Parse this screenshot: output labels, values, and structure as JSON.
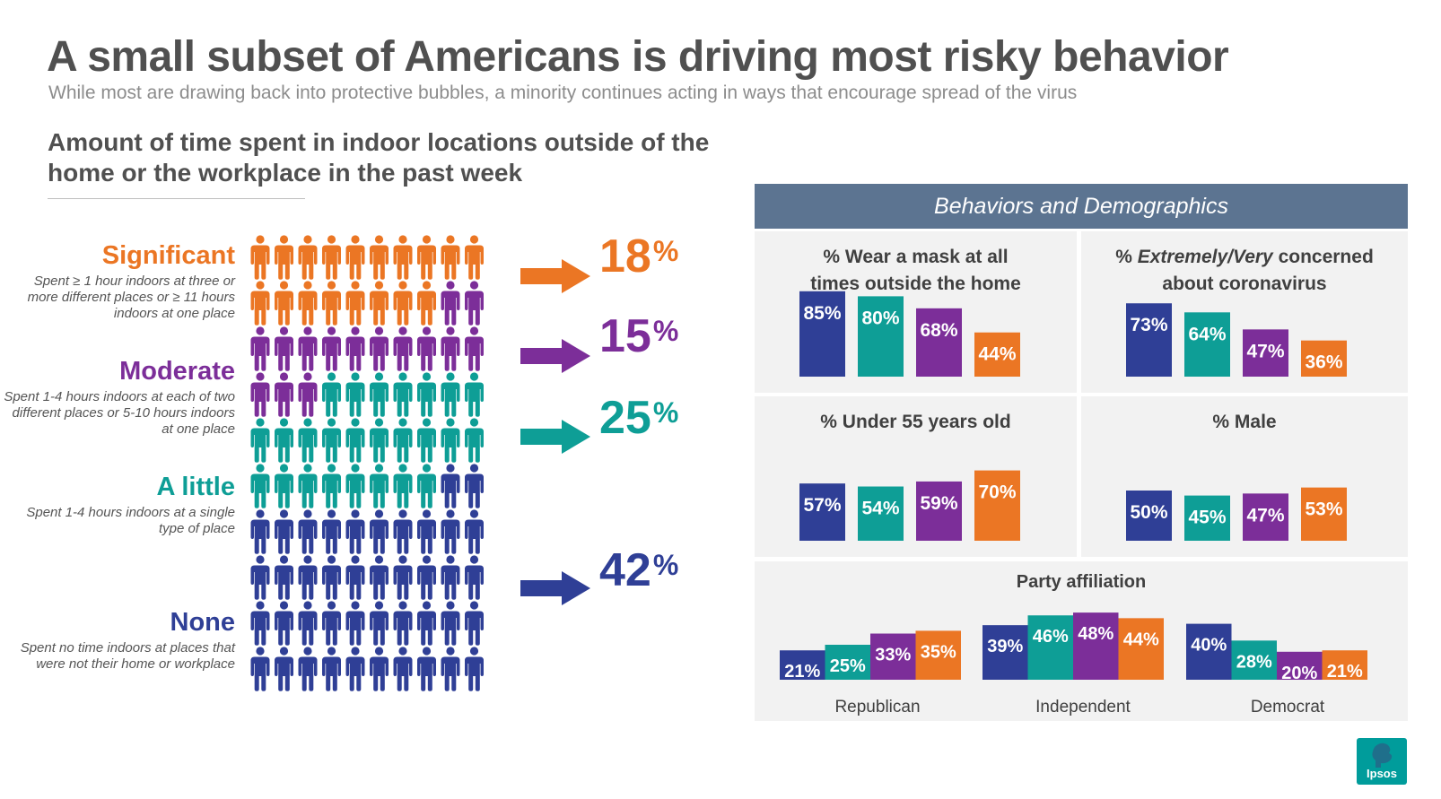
{
  "title": "A small subset of Americans is driving most risky behavior",
  "subtitle": "While most are drawing back into protective bubbles, a minority continues acting in ways that encourage spread of the virus",
  "colors": {
    "navy": "#2f3f96",
    "teal": "#0e9e96",
    "purple": "#7c2e99",
    "orange": "#eb7624",
    "header": "#5c7491",
    "panel": "#f2f2f2"
  },
  "chart_data": [
    {
      "type": "pictogram",
      "title": "Amount of time spent in indoor locations outside of the home or the workplace in the past week",
      "grid": {
        "rows": 10,
        "columns": 10
      },
      "series": [
        {
          "name": "Significant",
          "description": "Spent ≥ 1 hour indoors at three or more different places or ≥ 11 hours indoors at one place",
          "value": 18,
          "label": "18",
          "color": "#eb7624"
        },
        {
          "name": "Moderate",
          "description": "Spent 1-4 hours indoors at each of two different places or 5-10 hours indoors at one place",
          "value": 15,
          "label": "15",
          "color": "#7c2e99"
        },
        {
          "name": "A little",
          "description": "Spent 1-4 hours indoors at a single type of place",
          "value": 25,
          "label": "25",
          "color": "#0e9e96"
        },
        {
          "name": "None",
          "description": "Spent no time indoors at places that were not their home or workplace",
          "value": 42,
          "label": "42",
          "color": "#2f3f96"
        }
      ],
      "unit": "%"
    },
    {
      "type": "bar",
      "panel_header": "Behaviors and Demographics",
      "series_colors": [
        "#2f3f96",
        "#0e9e96",
        "#7c2e99",
        "#eb7624"
      ],
      "ylim": [
        0,
        100
      ],
      "panels": [
        {
          "title_parts": [
            {
              "text": "% Wear a mask at all times outside the home",
              "italic": false
            }
          ],
          "values": [
            85,
            80,
            68,
            44
          ],
          "labels": [
            "85%",
            "80%",
            "68%",
            "44%"
          ]
        },
        {
          "title_parts": [
            {
              "text": "% ",
              "italic": false
            },
            {
              "text": "Extremely/Very",
              "italic": true
            },
            {
              "text": " concerned about coronavirus",
              "italic": false
            }
          ],
          "values": [
            73,
            64,
            47,
            36
          ],
          "labels": [
            "73%",
            "64%",
            "47%",
            "36%"
          ]
        },
        {
          "title_parts": [
            {
              "text": "% Under 55 years old",
              "italic": false
            }
          ],
          "values": [
            57,
            54,
            59,
            70
          ],
          "labels": [
            "57%",
            "54%",
            "59%",
            "70%"
          ]
        },
        {
          "title_parts": [
            {
              "text": "% Male",
              "italic": false
            }
          ],
          "values": [
            50,
            45,
            47,
            53
          ],
          "labels": [
            "50%",
            "45%",
            "47%",
            "53%"
          ]
        }
      ]
    },
    {
      "type": "bar",
      "title": "Party affiliation",
      "categories": [
        "Republican",
        "Independent",
        "Democrat"
      ],
      "series_colors": [
        "#2f3f96",
        "#0e9e96",
        "#7c2e99",
        "#eb7624"
      ],
      "ylim": [
        0,
        100
      ],
      "groups": [
        {
          "values": [
            21,
            25,
            33,
            35
          ],
          "labels": [
            "21%",
            "25%",
            "33%",
            "35%"
          ]
        },
        {
          "values": [
            39,
            46,
            48,
            44
          ],
          "labels": [
            "39%",
            "46%",
            "48%",
            "44%"
          ]
        },
        {
          "values": [
            40,
            28,
            20,
            21
          ],
          "labels": [
            "40%",
            "28%",
            "20%",
            "21%"
          ]
        }
      ]
    }
  ],
  "logo": {
    "text": "Ipsos"
  }
}
